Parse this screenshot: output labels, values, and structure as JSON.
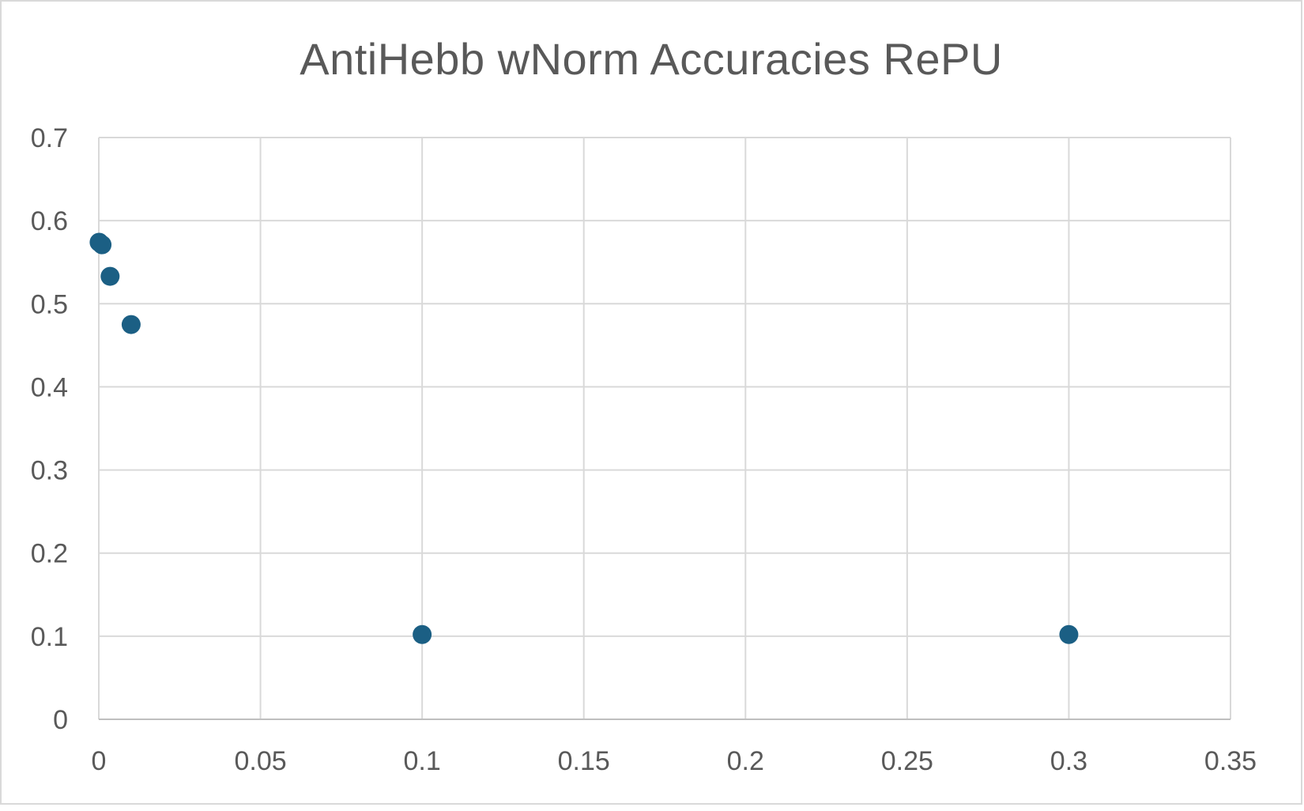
{
  "chart_data": {
    "type": "scatter",
    "title": "AntiHebb wNorm Accuracies RePU",
    "xlabel": "",
    "ylabel": "",
    "xlim": [
      0,
      0.35
    ],
    "ylim": [
      0,
      0.7
    ],
    "x_ticks": [
      "0",
      "0.05",
      "0.1",
      "0.15",
      "0.2",
      "0.25",
      "0.3",
      "0.35"
    ],
    "y_ticks": [
      "0",
      "0.1",
      "0.2",
      "0.3",
      "0.4",
      "0.5",
      "0.6",
      "0.7"
    ],
    "grid": true,
    "legend": "none",
    "series": [
      {
        "color": "#1b5f84",
        "points": [
          {
            "x": 0.0001,
            "y": 0.574
          },
          {
            "x": 0.001,
            "y": 0.571
          },
          {
            "x": 0.0035,
            "y": 0.533
          },
          {
            "x": 0.01,
            "y": 0.475
          },
          {
            "x": 0.1,
            "y": 0.102
          },
          {
            "x": 0.3,
            "y": 0.102
          }
        ]
      }
    ]
  }
}
